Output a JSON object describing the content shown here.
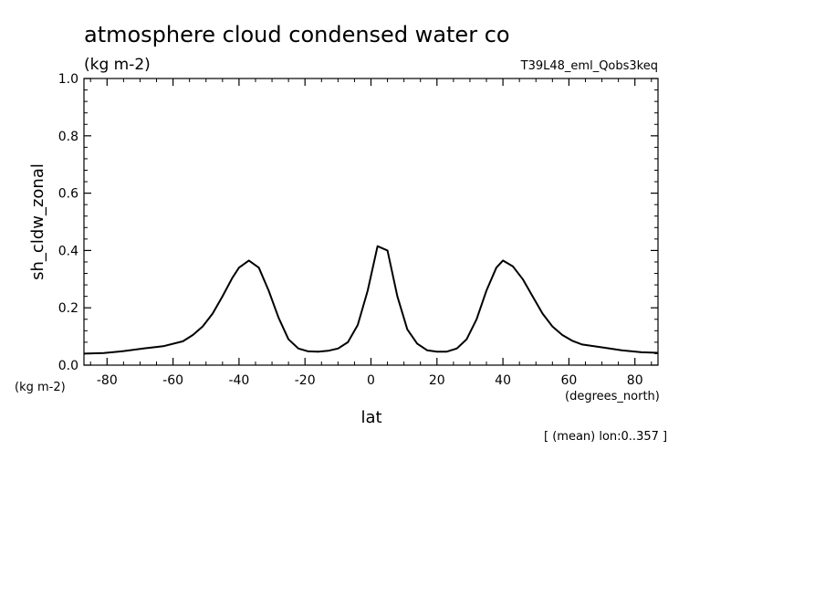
{
  "title": "atmosphere cloud condensed water co",
  "units_top": "(kg m-2)",
  "experiment": "T39L48_eml_Qobs3keq",
  "footnote": "[ (mean) lon:0..357 ]",
  "chart_data": {
    "type": "line",
    "ylabel": "sh_cldw_zonal",
    "ylabel_units": "(kg m-2)",
    "xlabel": "lat",
    "xlabel_units": "(degrees_north)",
    "xlim": [
      -87,
      87
    ],
    "ylim": [
      0.0,
      1.0
    ],
    "xticks": [
      -80,
      -60,
      -40,
      -20,
      0,
      20,
      40,
      60,
      80
    ],
    "xtick_labels": [
      "-80",
      "-60",
      "-40",
      "-20",
      "0",
      "20",
      "40",
      "60",
      "80"
    ],
    "yticks": [
      0.0,
      0.2,
      0.4,
      0.6,
      0.8,
      1.0
    ],
    "ytick_labels": [
      "0.0",
      "0.2",
      "0.4",
      "0.6",
      "0.8",
      "1.0"
    ],
    "series": [
      {
        "color": "#000000",
        "x": [
          -87,
          -81,
          -75,
          -69,
          -63,
          -57,
          -54,
          -51,
          -48,
          -45,
          -42,
          -40,
          -37,
          -34,
          -31,
          -28,
          -25,
          -22,
          -19,
          -16,
          -13,
          -10,
          -7,
          -4,
          -1,
          2,
          5,
          8,
          11,
          14,
          17,
          20,
          23,
          26,
          29,
          32,
          35,
          38,
          40,
          43,
          46,
          49,
          52,
          55,
          58,
          61,
          64,
          70,
          76,
          82,
          87
        ],
        "y": [
          0.04,
          0.042,
          0.049,
          0.058,
          0.066,
          0.083,
          0.105,
          0.135,
          0.18,
          0.24,
          0.305,
          0.34,
          0.365,
          0.34,
          0.26,
          0.165,
          0.09,
          0.058,
          0.048,
          0.047,
          0.05,
          0.058,
          0.08,
          0.14,
          0.26,
          0.415,
          0.4,
          0.24,
          0.125,
          0.075,
          0.052,
          0.047,
          0.047,
          0.058,
          0.09,
          0.16,
          0.26,
          0.34,
          0.365,
          0.345,
          0.3,
          0.24,
          0.18,
          0.135,
          0.105,
          0.085,
          0.072,
          0.062,
          0.052,
          0.045,
          0.043
        ]
      }
    ],
    "grid": false,
    "legend": "none"
  }
}
